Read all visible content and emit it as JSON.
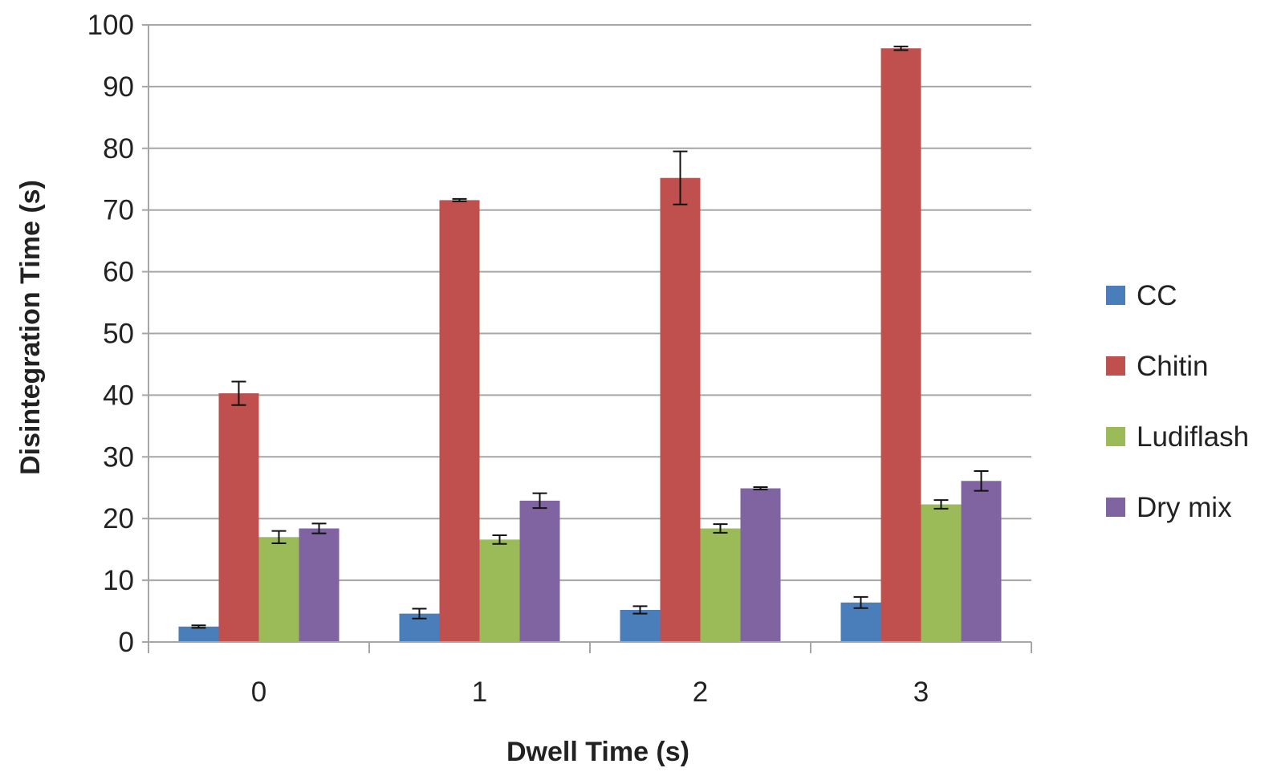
{
  "chart_data": {
    "type": "bar",
    "title": "",
    "xlabel": "Dwell Time (s)",
    "ylabel": "Disintegration Time (s)",
    "categories": [
      "0",
      "1",
      "2",
      "3"
    ],
    "ylim": [
      0,
      100
    ],
    "yticks": [
      "0",
      "10",
      "20",
      "30",
      "40",
      "50",
      "60",
      "70",
      "80",
      "90",
      "100"
    ],
    "grid": true,
    "legend": "right",
    "series": [
      {
        "name": "CC",
        "color": "#4a7ebb",
        "values": [
          2.5,
          4.6,
          5.2,
          6.4
        ],
        "errors": [
          0.2,
          0.8,
          0.6,
          0.9
        ]
      },
      {
        "name": "Chitin",
        "color": "#c0504d",
        "values": [
          40.3,
          71.6,
          75.2,
          96.2
        ],
        "errors": [
          1.9,
          0.2,
          4.3,
          0.3
        ]
      },
      {
        "name": "Ludiflash",
        "color": "#9bbb59",
        "values": [
          17.0,
          16.6,
          18.4,
          22.3
        ],
        "errors": [
          1.0,
          0.7,
          0.7,
          0.7
        ]
      },
      {
        "name": "Dry mix",
        "color": "#8064a2",
        "values": [
          18.4,
          22.9,
          24.9,
          26.1
        ],
        "errors": [
          0.8,
          1.2,
          0.2,
          1.6
        ]
      }
    ]
  }
}
